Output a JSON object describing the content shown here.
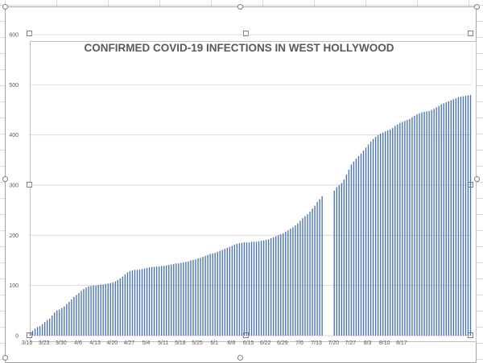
{
  "chart_data": {
    "type": "bar",
    "title": "CONFIRMED COVID-19 INFECTIONS IN WEST HOLLYWOOD",
    "xlabel": "",
    "ylabel": "",
    "ylim": [
      0,
      600
    ],
    "yticks": [
      0,
      100,
      200,
      300,
      400,
      500,
      600
    ],
    "grid": true,
    "legend": "none",
    "bar_color": "#4472c4",
    "x_tick_labels": [
      "3/16",
      "3/23",
      "3/30",
      "4/6",
      "4/13",
      "4/20",
      "4/27",
      "5/4",
      "5/11",
      "5/18",
      "5/25",
      "6/1",
      "6/8",
      "6/15",
      "6/22",
      "6/29",
      "7/6",
      "7/13",
      "7/20",
      "7/27",
      "8/3",
      "8/10",
      "8/17"
    ],
    "start_date": "3/16",
    "values": [
      6,
      10,
      14,
      17,
      19,
      23,
      27,
      31,
      34,
      40,
      46,
      50,
      52,
      55,
      58,
      63,
      67,
      72,
      77,
      81,
      85,
      89,
      93,
      96,
      98,
      99,
      100,
      100,
      101,
      102,
      102,
      103,
      104,
      105,
      106,
      108,
      111,
      114,
      118,
      122,
      126,
      128,
      130,
      131,
      131,
      132,
      133,
      134,
      135,
      136,
      137,
      137,
      138,
      138,
      139,
      139,
      140,
      141,
      142,
      143,
      144,
      144,
      145,
      146,
      147,
      148,
      150,
      151,
      152,
      154,
      155,
      157,
      159,
      161,
      163,
      164,
      165,
      167,
      169,
      171,
      173,
      175,
      177,
      179,
      181,
      183,
      184,
      185,
      186,
      186,
      186,
      187,
      187,
      187,
      188,
      189,
      190,
      191,
      192,
      194,
      196,
      198,
      200,
      202,
      204,
      207,
      210,
      213,
      216,
      220,
      224,
      229,
      234,
      238,
      242,
      247,
      253,
      259,
      266,
      272,
      278,
      null,
      null,
      null,
      null,
      289,
      296,
      300,
      304,
      311,
      321,
      331,
      341,
      347,
      353,
      358,
      363,
      369,
      375,
      381,
      387,
      392,
      396,
      400,
      403,
      405,
      407,
      409,
      411,
      414,
      418,
      421,
      424,
      426,
      428,
      430,
      432,
      435,
      438,
      441,
      443,
      445,
      446,
      447,
      448,
      450,
      452,
      455,
      458,
      461,
      463,
      465,
      467,
      469,
      471,
      473,
      475,
      476,
      477,
      478,
      479,
      480
    ]
  }
}
